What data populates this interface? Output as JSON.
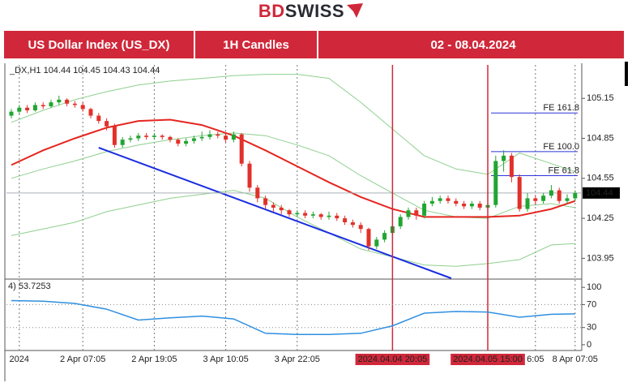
{
  "logo": {
    "brand_a": "BD",
    "brand_b": "SWISS"
  },
  "header": {
    "instrument": "US Dollar Index (US_DX)",
    "timeframe": "1H Candles",
    "period": "02 - 08.04.2024"
  },
  "chart_data": [
    {
      "type": "candlestick",
      "title": "_DX,H1  104.44 104.45 104.43 104.44",
      "categories": [
        null,
        "2024",
        null,
        null,
        null,
        null,
        null,
        null,
        null,
        "2 Apr 07:05",
        null,
        null,
        null,
        null,
        null,
        null,
        null,
        null,
        "2 Apr 19:05",
        null,
        null,
        null,
        null,
        null,
        null,
        null,
        null,
        "3 Apr 10:05",
        null,
        null,
        null,
        null,
        null,
        null,
        null,
        null,
        "3 Apr 22:05",
        null,
        null,
        null,
        null,
        null,
        null,
        null,
        null,
        null,
        null,
        null,
        null,
        null,
        null,
        null,
        null,
        null,
        null,
        null,
        null,
        null,
        null,
        null,
        null,
        null,
        null,
        null,
        null,
        null,
        "6:05",
        null,
        null,
        null,
        null,
        "8 Apr 07:05"
      ],
      "vlines": [
        {
          "x": 48,
          "label": "2024.04.04 20:05"
        },
        {
          "x": 60,
          "label": "2024.04.05 15:00"
        }
      ],
      "vline_color": "#d0283a",
      "open": [
        105.02,
        105.05,
        105.08,
        105.06,
        105.1,
        105.09,
        105.12,
        105.14,
        105.11,
        105.1,
        105.07,
        105.02,
        104.98,
        104.94,
        104.8,
        104.84,
        104.85,
        104.87,
        104.86,
        104.87,
        104.86,
        104.84,
        104.81,
        104.83,
        104.85,
        104.86,
        104.88,
        104.87,
        104.84,
        104.88,
        104.66,
        104.48,
        104.4,
        104.35,
        104.33,
        104.31,
        104.28,
        104.29,
        104.27,
        104.28,
        104.26,
        104.27,
        104.25,
        104.22,
        104.2,
        104.17,
        104.04,
        104.09,
        104.14,
        104.19,
        104.26,
        104.31,
        104.27,
        104.36,
        104.38,
        104.4,
        104.38,
        104.36,
        104.34,
        104.36,
        104.33,
        104.35,
        104.68,
        104.72,
        104.56,
        104.32,
        104.4,
        104.38,
        104.42,
        104.46,
        104.38,
        104.4
      ],
      "high": [
        105.07,
        105.1,
        105.1,
        105.12,
        105.12,
        105.14,
        105.17,
        105.15,
        105.13,
        105.12,
        105.08,
        105.04,
        105.0,
        104.96,
        104.86,
        104.87,
        104.89,
        104.89,
        104.89,
        104.88,
        104.87,
        104.85,
        104.85,
        104.87,
        104.9,
        104.91,
        104.9,
        104.89,
        104.9,
        104.89,
        104.68,
        104.5,
        104.42,
        104.37,
        104.35,
        104.32,
        104.31,
        104.31,
        104.3,
        104.29,
        104.3,
        104.29,
        104.27,
        104.24,
        104.22,
        104.18,
        104.11,
        104.16,
        104.21,
        104.28,
        104.33,
        104.33,
        104.38,
        104.41,
        104.42,
        104.42,
        104.4,
        104.38,
        104.38,
        104.38,
        104.37,
        104.72,
        104.76,
        104.74,
        104.58,
        104.44,
        104.42,
        104.44,
        104.5,
        104.48,
        104.43,
        104.46
      ],
      "low": [
        105.0,
        105.03,
        105.04,
        105.05,
        105.07,
        105.08,
        105.1,
        105.09,
        105.08,
        105.05,
        105.0,
        104.96,
        104.91,
        104.78,
        104.78,
        104.82,
        104.83,
        104.84,
        104.84,
        104.84,
        104.82,
        104.79,
        104.79,
        104.81,
        104.83,
        104.84,
        104.85,
        104.82,
        104.82,
        104.64,
        104.45,
        104.37,
        104.32,
        104.3,
        104.28,
        104.26,
        104.26,
        104.25,
        104.25,
        104.24,
        104.24,
        104.23,
        104.2,
        104.18,
        104.14,
        104.01,
        104.02,
        104.07,
        104.12,
        104.17,
        104.24,
        104.24,
        104.25,
        104.34,
        104.36,
        104.36,
        104.34,
        104.32,
        104.32,
        104.31,
        104.3,
        104.33,
        104.6,
        104.52,
        104.3,
        104.3,
        104.35,
        104.36,
        104.4,
        104.36,
        104.36,
        104.38
      ],
      "close": [
        105.05,
        105.08,
        105.06,
        105.1,
        105.09,
        105.12,
        105.14,
        105.11,
        105.1,
        105.07,
        105.02,
        104.98,
        104.94,
        104.8,
        104.84,
        104.85,
        104.87,
        104.86,
        104.87,
        104.86,
        104.84,
        104.81,
        104.83,
        104.85,
        104.86,
        104.88,
        104.87,
        104.84,
        104.88,
        104.66,
        104.48,
        104.4,
        104.35,
        104.33,
        104.31,
        104.28,
        104.29,
        104.27,
        104.28,
        104.26,
        104.27,
        104.25,
        104.22,
        104.2,
        104.17,
        104.04,
        104.09,
        104.14,
        104.19,
        104.26,
        104.31,
        104.27,
        104.36,
        104.38,
        104.4,
        104.38,
        104.36,
        104.34,
        104.36,
        104.33,
        104.35,
        104.68,
        104.72,
        104.56,
        104.32,
        104.4,
        104.38,
        104.42,
        104.46,
        104.38,
        104.4,
        104.44
      ],
      "up_color": "#21a531",
      "down_color": "#e2302a",
      "ylim": [
        103.8,
        105.34
      ],
      "yticks": [
        103.95,
        104.25,
        104.55,
        104.85,
        105.15
      ],
      "last_price": 104.44,
      "series": [
        {
          "color": "#8fcf8f",
          "x": [
            0,
            4,
            8,
            12,
            16,
            20,
            24,
            28,
            32,
            36,
            40,
            44,
            48,
            52,
            56,
            60,
            64,
            68,
            71
          ],
          "values": [
            104.97,
            105.06,
            105.14,
            105.2,
            105.25,
            105.28,
            105.3,
            105.32,
            105.33,
            105.33,
            105.3,
            105.12,
            104.92,
            104.72,
            104.62,
            104.58,
            104.74,
            104.66,
            104.6
          ]
        },
        {
          "color": "#8fcf8f",
          "x": [
            0,
            4,
            8,
            12,
            16,
            20,
            24,
            28,
            32,
            36,
            40,
            44,
            48,
            52,
            56,
            60,
            64,
            68,
            71
          ],
          "values": [
            104.55,
            104.62,
            104.68,
            104.75,
            104.8,
            104.84,
            104.87,
            104.89,
            104.87,
            104.8,
            104.72,
            104.57,
            104.44,
            104.31,
            104.26,
            104.25,
            104.34,
            104.36,
            104.33
          ]
        },
        {
          "color": "#8fcf8f",
          "x": [
            0,
            4,
            8,
            12,
            16,
            20,
            24,
            28,
            32,
            36,
            40,
            44,
            48,
            52,
            56,
            60,
            64,
            68,
            71
          ],
          "values": [
            104.12,
            104.17,
            104.22,
            104.3,
            104.35,
            104.4,
            104.43,
            104.46,
            104.4,
            104.26,
            104.14,
            104.02,
            103.96,
            103.9,
            103.89,
            103.91,
            103.94,
            104.05,
            104.06
          ]
        },
        {
          "color": "#e5261f",
          "x": [
            0,
            4,
            8,
            12,
            16,
            20,
            24,
            28,
            32,
            36,
            40,
            44,
            48,
            52,
            56,
            60,
            64,
            68,
            71
          ],
          "values": [
            104.65,
            104.76,
            104.85,
            104.93,
            104.98,
            104.99,
            104.95,
            104.87,
            104.76,
            104.64,
            104.52,
            104.41,
            104.32,
            104.26,
            104.26,
            104.26,
            104.27,
            104.32,
            104.38
          ]
        }
      ],
      "trendline": {
        "color": "#1a2ee0",
        "x": [
          11,
          55.4
        ],
        "values": [
          104.78,
          103.8
        ]
      },
      "level_color": "#2a35d8",
      "levels": [
        {
          "label": "FE 161.8",
          "value": 105.04
        },
        {
          "label": "FE 100.0",
          "value": 104.75
        },
        {
          "label": "FE 61.8",
          "value": 104.57
        }
      ]
    },
    {
      "type": "line",
      "title": "4) 53.7253",
      "ylim": [
        -10,
        113
      ],
      "yticks": [
        0,
        30,
        70,
        100
      ],
      "levels": [
        30,
        70
      ],
      "series": [
        {
          "color": "#2f8fe0",
          "x": [
            0,
            4,
            8,
            12,
            16,
            20,
            24,
            28,
            32,
            36,
            40,
            44,
            48,
            52,
            56,
            60,
            64,
            68,
            71
          ],
          "values": [
            77,
            76,
            72,
            62,
            43,
            47,
            50,
            45,
            20,
            18,
            18,
            20,
            33,
            55,
            58,
            57,
            48,
            53,
            53.73
          ]
        }
      ]
    }
  ]
}
